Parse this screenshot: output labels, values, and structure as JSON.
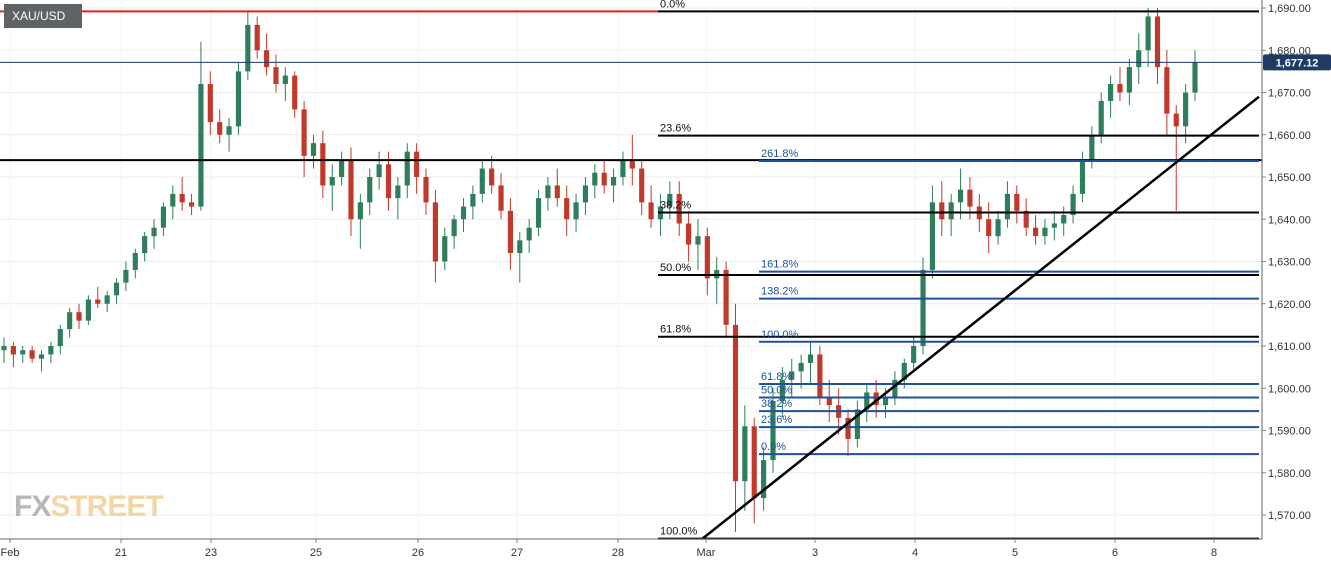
{
  "symbol": "XAU/USD",
  "current_price_label": "1,677.12",
  "watermark": {
    "part1": "FX",
    "part2": "STREET"
  },
  "colors": {
    "up": "#2e7d5b",
    "down": "#c0392b",
    "fib_blue": "#1e50a0",
    "level_black": "#000000",
    "resistance_red": "#e02020",
    "price_tag": "#1f3a64"
  },
  "chart_data": {
    "type": "candlestick",
    "title": "",
    "ylim": [
      1564,
      1691
    ],
    "y_ticks": [
      1690,
      1680,
      1670,
      1660,
      1650,
      1640,
      1630,
      1620,
      1610,
      1600,
      1590,
      1580,
      1570
    ],
    "y_tick_labels": [
      "1,690.00",
      "1,680.00",
      "1,670.00",
      "1,660.00",
      "1,650.00",
      "1,640.00",
      "1,630.00",
      "1,620.00",
      "1,610.00",
      "1,600.00",
      "1,590.00",
      "1,580.00",
      "1,570.00"
    ],
    "x_labels": [
      "Feb",
      "21",
      "23",
      "25",
      "26",
      "27",
      "28",
      "Mar",
      "3",
      "4",
      "5",
      "6",
      "8"
    ],
    "current_price": 1677.12,
    "horizontal_levels": [
      {
        "name": "resistance-red",
        "y": 1689.2,
        "color": "red"
      },
      {
        "name": "support-black",
        "y": 1654.0,
        "color": "black"
      }
    ],
    "fib_retracement_black": [
      {
        "label": "0.0%",
        "y": 1689.2
      },
      {
        "label": "23.6%",
        "y": 1659.8
      },
      {
        "label": "38.2%",
        "y": 1641.6
      },
      {
        "label": "50.0%",
        "y": 1626.8
      },
      {
        "label": "61.8%",
        "y": 1612.2
      },
      {
        "label": "100.0%",
        "y": 1564.4
      }
    ],
    "fib_extension_blue": [
      {
        "label": "261.8%",
        "y": 1653.8
      },
      {
        "label": "161.8%",
        "y": 1627.6
      },
      {
        "label": "138.2%",
        "y": 1621.2
      },
      {
        "label": "100.0%",
        "y": 1611.0
      },
      {
        "label": "61.8%",
        "y": 1601.0
      },
      {
        "label": "50.0%",
        "y": 1597.8
      },
      {
        "label": "38.2%",
        "y": 1594.6
      },
      {
        "label": "23.6%",
        "y": 1590.8
      },
      {
        "label": "0.0%",
        "y": 1584.4
      }
    ],
    "trendline": {
      "from": {
        "x": "Mar",
        "y": 1564.5
      },
      "to": {
        "x": "after 8",
        "y": 1669.0
      }
    },
    "series": [
      {
        "values": [
          [
            1609,
            1612,
            1606,
            1610
          ],
          [
            1610,
            1611,
            1605,
            1608
          ],
          [
            1608,
            1610,
            1606,
            1609
          ],
          [
            1609,
            1610,
            1606,
            1607
          ],
          [
            1607,
            1609,
            1604,
            1608
          ],
          [
            1608,
            1611,
            1606,
            1610
          ],
          [
            1610,
            1615,
            1608,
            1614
          ],
          [
            1614,
            1619,
            1612,
            1618
          ],
          [
            1618,
            1620,
            1614,
            1616
          ],
          [
            1616,
            1622,
            1615,
            1621
          ],
          [
            1621,
            1624,
            1619,
            1620
          ],
          [
            1620,
            1623,
            1618,
            1622
          ],
          [
            1622,
            1626,
            1620,
            1625
          ],
          [
            1625,
            1630,
            1623,
            1628
          ],
          [
            1628,
            1633,
            1626,
            1632
          ],
          [
            1632,
            1637,
            1630,
            1636
          ],
          [
            1636,
            1640,
            1633,
            1638
          ],
          [
            1638,
            1644,
            1636,
            1643
          ],
          [
            1643,
            1648,
            1640,
            1646
          ],
          [
            1646,
            1650,
            1642,
            1644
          ],
          [
            1644,
            1646,
            1641,
            1643
          ],
          [
            1643,
            1682,
            1642,
            1672
          ],
          [
            1672,
            1675,
            1660,
            1663
          ],
          [
            1663,
            1666,
            1658,
            1660
          ],
          [
            1660,
            1664,
            1656,
            1662
          ],
          [
            1662,
            1677,
            1660,
            1675
          ],
          [
            1675,
            1689,
            1673,
            1686
          ],
          [
            1686,
            1688,
            1678,
            1680
          ],
          [
            1680,
            1684,
            1674,
            1676
          ],
          [
            1676,
            1679,
            1670,
            1672
          ],
          [
            1672,
            1676,
            1668,
            1674
          ],
          [
            1674,
            1675,
            1664,
            1666
          ],
          [
            1666,
            1668,
            1650,
            1655
          ],
          [
            1655,
            1660,
            1652,
            1658
          ],
          [
            1658,
            1661,
            1645,
            1648
          ],
          [
            1648,
            1653,
            1642,
            1650
          ],
          [
            1650,
            1656,
            1648,
            1654
          ],
          [
            1654,
            1657,
            1636,
            1640
          ],
          [
            1640,
            1646,
            1633,
            1644
          ],
          [
            1644,
            1652,
            1641,
            1650
          ],
          [
            1650,
            1656,
            1647,
            1653
          ],
          [
            1653,
            1656,
            1642,
            1645
          ],
          [
            1645,
            1650,
            1640,
            1648
          ],
          [
            1648,
            1658,
            1645,
            1656
          ],
          [
            1656,
            1658,
            1646,
            1650
          ],
          [
            1650,
            1652,
            1641,
            1644
          ],
          [
            1644,
            1647,
            1625,
            1630
          ],
          [
            1630,
            1638,
            1628,
            1636
          ],
          [
            1636,
            1641,
            1633,
            1640
          ],
          [
            1640,
            1645,
            1637,
            1643
          ],
          [
            1643,
            1648,
            1640,
            1646
          ],
          [
            1646,
            1654,
            1644,
            1652
          ],
          [
            1652,
            1655,
            1646,
            1648
          ],
          [
            1648,
            1651,
            1640,
            1642
          ],
          [
            1642,
            1645,
            1628,
            1632
          ],
          [
            1632,
            1637,
            1625,
            1635
          ],
          [
            1635,
            1640,
            1632,
            1638
          ],
          [
            1638,
            1647,
            1636,
            1645
          ],
          [
            1645,
            1650,
            1642,
            1648
          ],
          [
            1648,
            1652,
            1643,
            1645
          ],
          [
            1645,
            1648,
            1636,
            1640
          ],
          [
            1640,
            1646,
            1637,
            1644
          ],
          [
            1644,
            1650,
            1641,
            1648
          ],
          [
            1648,
            1653,
            1645,
            1651
          ],
          [
            1651,
            1654,
            1646,
            1648
          ],
          [
            1648,
            1652,
            1644,
            1650
          ],
          [
            1650,
            1656,
            1648,
            1654
          ],
          [
            1654,
            1660,
            1648,
            1652
          ],
          [
            1652,
            1654,
            1641,
            1644
          ],
          [
            1644,
            1648,
            1638,
            1640
          ],
          [
            1640,
            1646,
            1636,
            1643
          ],
          [
            1643,
            1649,
            1640,
            1646
          ],
          [
            1646,
            1649,
            1636,
            1639
          ],
          [
            1639,
            1642,
            1630,
            1634
          ],
          [
            1634,
            1640,
            1628,
            1636
          ],
          [
            1636,
            1638,
            1622,
            1626
          ],
          [
            1626,
            1631,
            1620,
            1628
          ],
          [
            1628,
            1630,
            1612,
            1615
          ],
          [
            1615,
            1620,
            1566,
            1578
          ],
          [
            1578,
            1596,
            1571,
            1591
          ],
          [
            1591,
            1593,
            1568,
            1574
          ],
          [
            1574,
            1586,
            1571,
            1583
          ],
          [
            1583,
            1600,
            1580,
            1597
          ],
          [
            1597,
            1605,
            1593,
            1602
          ],
          [
            1602,
            1607,
            1598,
            1604
          ],
          [
            1604,
            1608,
            1600,
            1606
          ],
          [
            1606,
            1611,
            1601,
            1608
          ],
          [
            1608,
            1610,
            1596,
            1598
          ],
          [
            1598,
            1602,
            1592,
            1596
          ],
          [
            1596,
            1600,
            1589,
            1593
          ],
          [
            1593,
            1595,
            1584,
            1588
          ],
          [
            1588,
            1597,
            1586,
            1595
          ],
          [
            1595,
            1601,
            1592,
            1599
          ],
          [
            1599,
            1602,
            1593,
            1596
          ],
          [
            1596,
            1600,
            1593,
            1598
          ],
          [
            1598,
            1604,
            1596,
            1602
          ],
          [
            1602,
            1607,
            1600,
            1606
          ],
          [
            1606,
            1612,
            1604,
            1610
          ],
          [
            1610,
            1631,
            1608,
            1628
          ],
          [
            1628,
            1648,
            1626,
            1644
          ],
          [
            1644,
            1649,
            1636,
            1640
          ],
          [
            1640,
            1646,
            1636,
            1644
          ],
          [
            1644,
            1652,
            1640,
            1647
          ],
          [
            1647,
            1650,
            1640,
            1643
          ],
          [
            1643,
            1646,
            1637,
            1640
          ],
          [
            1640,
            1644,
            1632,
            1636
          ],
          [
            1636,
            1642,
            1634,
            1640
          ],
          [
            1640,
            1649,
            1638,
            1646
          ],
          [
            1646,
            1648,
            1639,
            1642
          ],
          [
            1642,
            1645,
            1636,
            1638
          ],
          [
            1638,
            1641,
            1634,
            1636
          ],
          [
            1636,
            1640,
            1634,
            1638
          ],
          [
            1638,
            1642,
            1635,
            1639
          ],
          [
            1639,
            1643,
            1636,
            1641
          ],
          [
            1641,
            1648,
            1639,
            1646
          ],
          [
            1646,
            1656,
            1644,
            1654
          ],
          [
            1654,
            1662,
            1652,
            1660
          ],
          [
            1660,
            1670,
            1658,
            1668
          ],
          [
            1668,
            1674,
            1664,
            1672
          ],
          [
            1672,
            1676,
            1668,
            1670
          ],
          [
            1670,
            1678,
            1667,
            1676
          ],
          [
            1676,
            1684,
            1672,
            1680
          ],
          [
            1680,
            1690,
            1676,
            1688
          ],
          [
            1688,
            1690,
            1672,
            1676
          ],
          [
            1676,
            1680,
            1660,
            1665
          ],
          [
            1665,
            1667,
            1642,
            1662
          ],
          [
            1662,
            1672,
            1658,
            1670
          ],
          [
            1670,
            1680,
            1668,
            1677.12
          ]
        ]
      }
    ]
  }
}
